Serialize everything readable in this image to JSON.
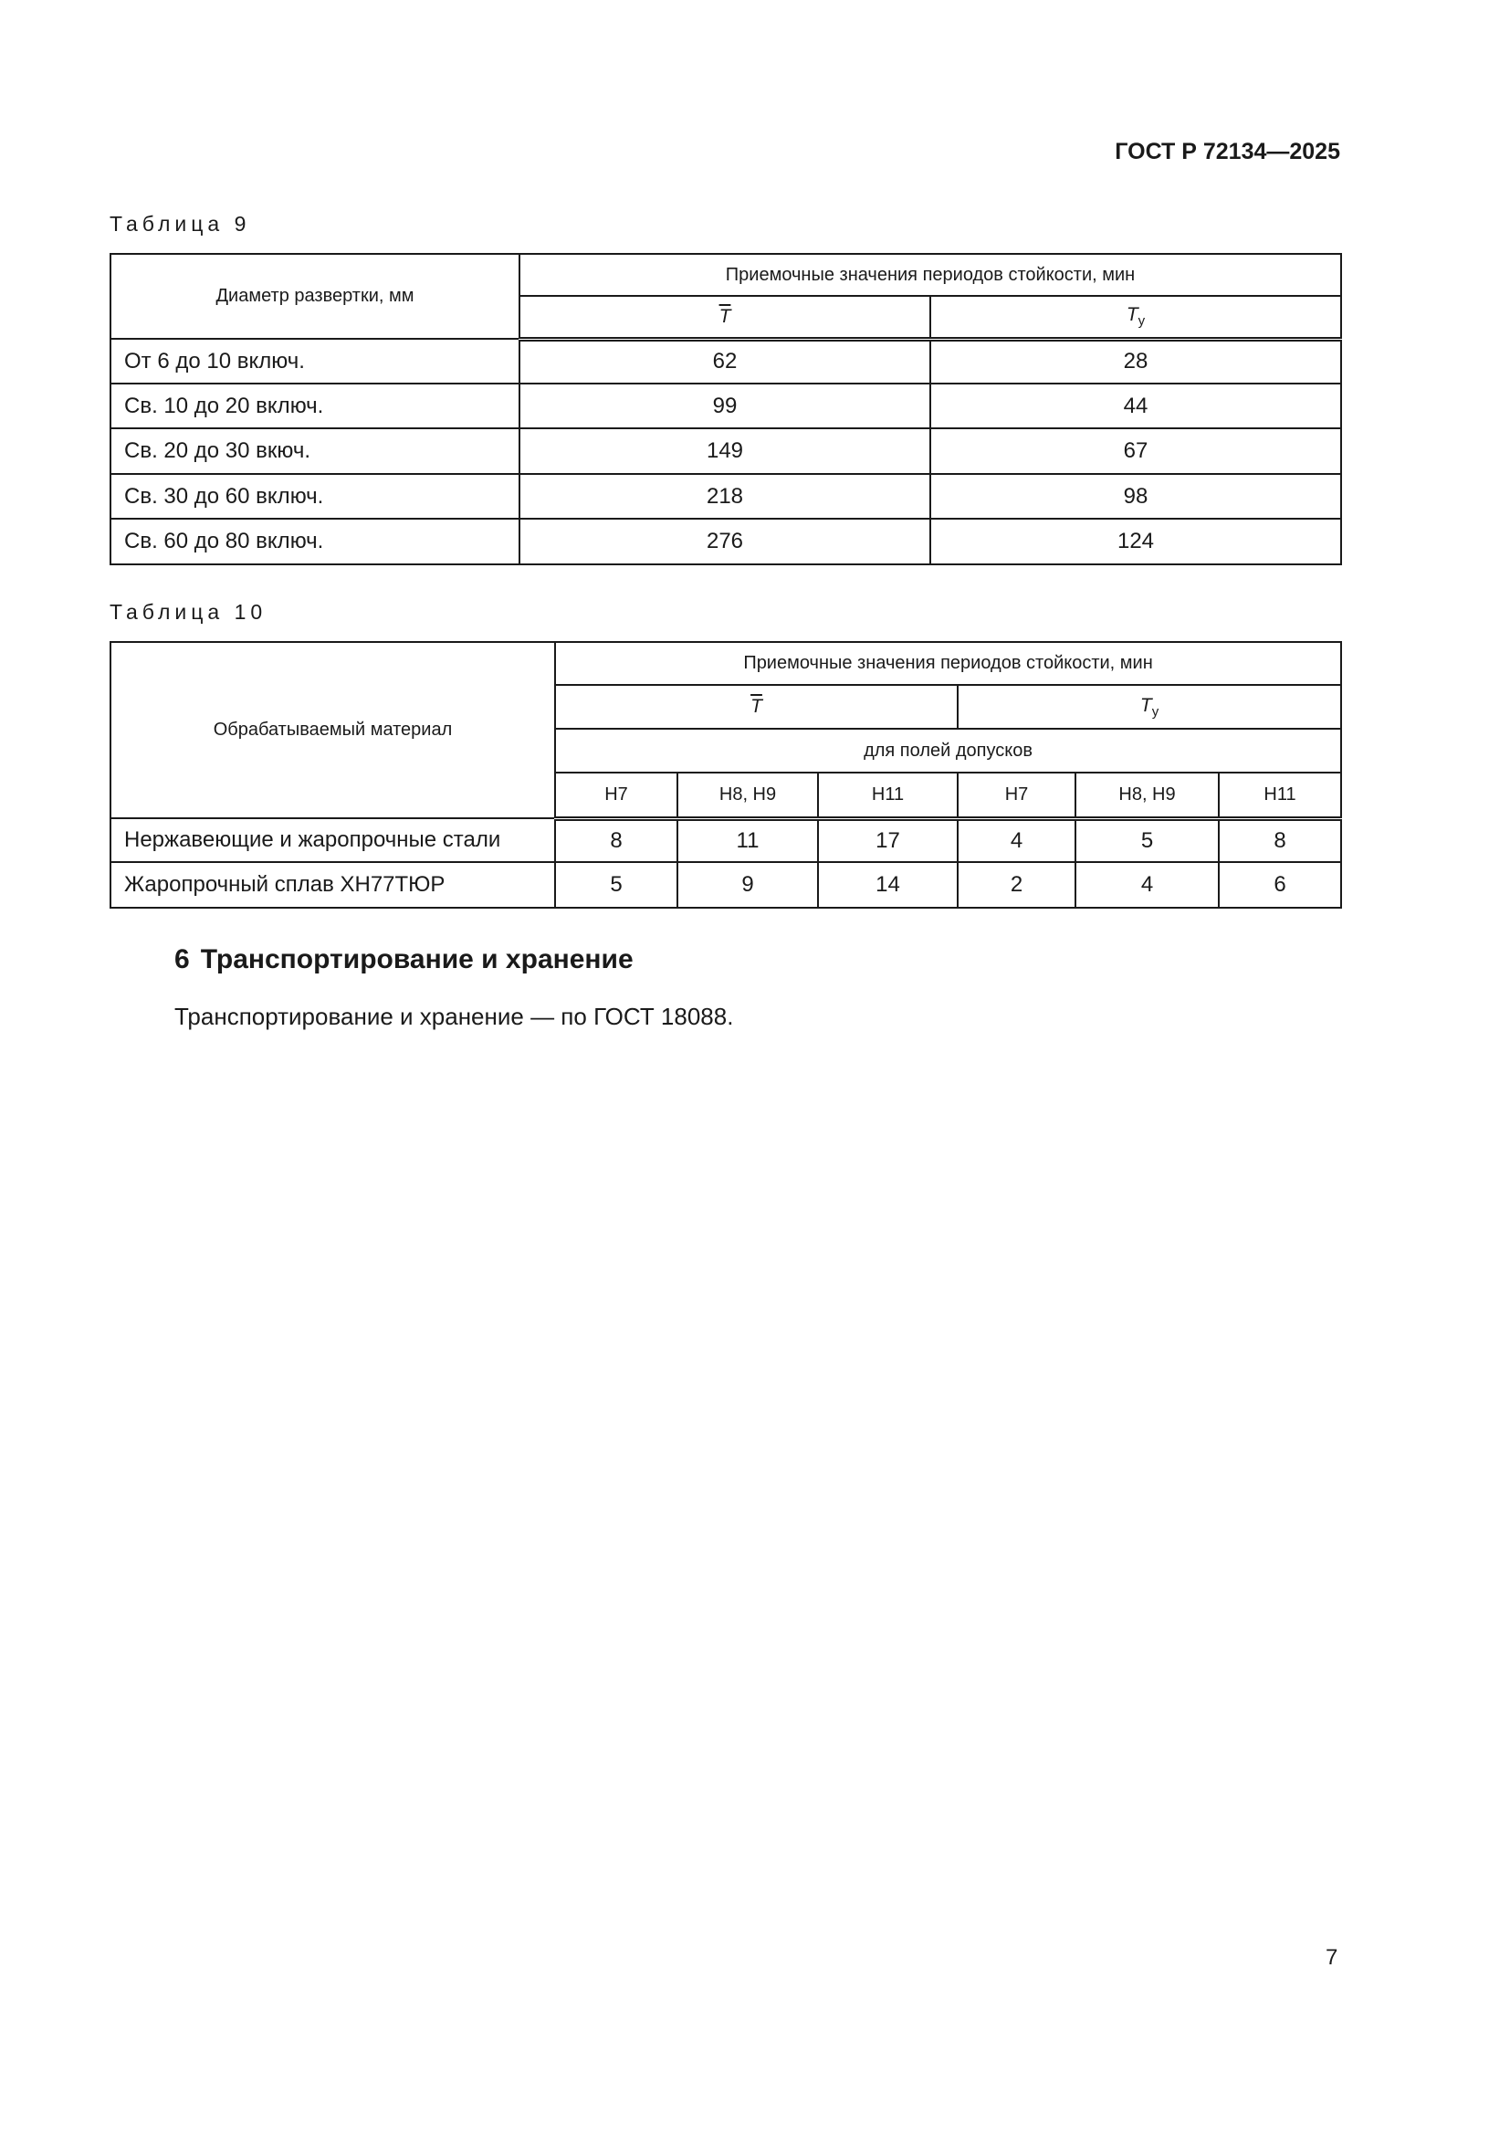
{
  "header": {
    "doc_id": "ГОСТ Р 72134—2025"
  },
  "table9": {
    "caption": "Таблица 9",
    "col_header": "Диаметр развертки, мм",
    "group_header": "Приемочные значения периодов стойкости, мин",
    "sub_headers": {
      "t_mean": "T",
      "t_y": "T",
      "t_y_sub": "у"
    },
    "rows": [
      {
        "label": "От 6 до 10 включ.",
        "t_mean": "62",
        "t_y": "28"
      },
      {
        "label": "Св. 10 до 20 включ.",
        "t_mean": "99",
        "t_y": "44"
      },
      {
        "label": "Св. 20 до 30 вкюч.",
        "t_mean": "149",
        "t_y": "67"
      },
      {
        "label": "Св. 30 до 60 включ.",
        "t_mean": "218",
        "t_y": "98"
      },
      {
        "label": "Св. 60 до 80 включ.",
        "t_mean": "276",
        "t_y": "124"
      }
    ]
  },
  "table10": {
    "caption": "Таблица 10",
    "col_header": "Обрабатываемый материал",
    "group_header": "Приемочные значения периодов стойкости, мин",
    "sub_headers": {
      "t_mean": "T",
      "t_y": "T",
      "t_y_sub": "у"
    },
    "tolerance_header": "для полей допусков",
    "tolerances": [
      "H7",
      "H8, H9",
      "H11",
      "H7",
      "H8, H9",
      "H11"
    ],
    "rows": [
      {
        "label": "Нержавеющие и жаропрочные стали",
        "values": [
          "8",
          "11",
          "17",
          "4",
          "5",
          "8"
        ]
      },
      {
        "label": "Жаропрочный сплав ХН77ТЮР",
        "values": [
          "5",
          "9",
          "14",
          "2",
          "4",
          "6"
        ]
      }
    ]
  },
  "section": {
    "number": "6",
    "title": "Транспортирование и хранение",
    "text": "Транспортирование и хранение — по ГОСТ 18088."
  },
  "page_number": "7"
}
